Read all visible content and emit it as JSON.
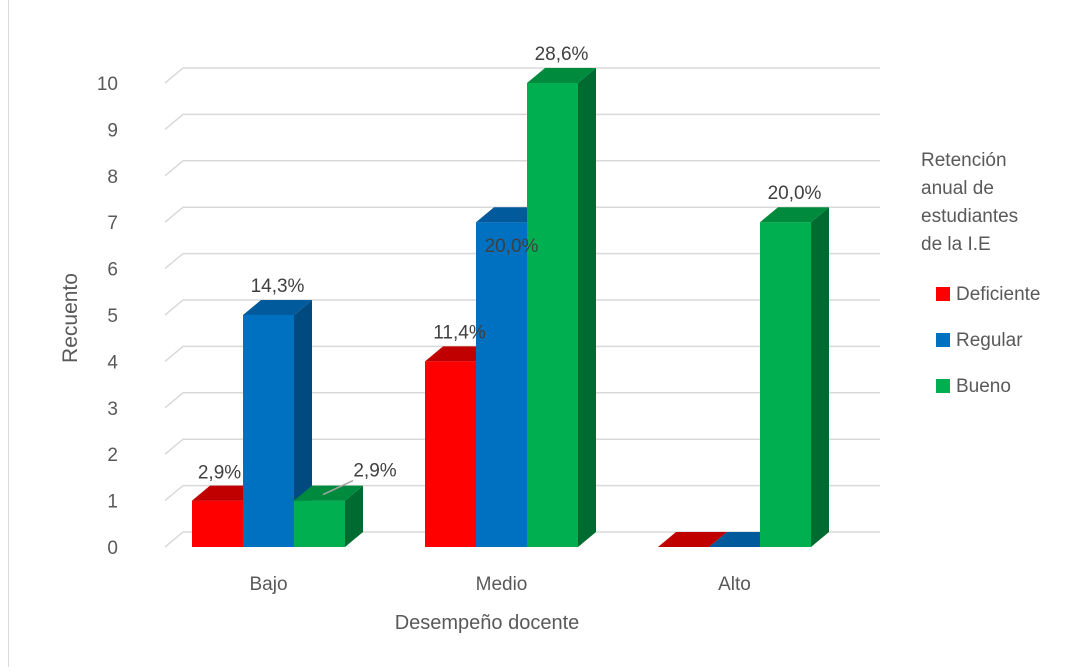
{
  "chart_data": {
    "type": "bar",
    "categories": [
      "Bajo",
      "Medio",
      "Alto"
    ],
    "series": [
      {
        "name": "Deficiente",
        "values": [
          1,
          4,
          0
        ],
        "labels": [
          "2,9%",
          "11,4%",
          ""
        ]
      },
      {
        "name": "Regular",
        "values": [
          5,
          7,
          0
        ],
        "labels": [
          "14,3%",
          "20,0%",
          ""
        ]
      },
      {
        "name": "Bueno",
        "values": [
          1,
          10,
          7
        ],
        "labels": [
          "2,9%",
          "28,6%",
          "20,0%"
        ]
      }
    ],
    "xlabel": "Desempeño docente",
    "ylabel": "Recuento",
    "ylim": [
      0,
      10
    ],
    "yticks": [
      "0",
      "1",
      "2",
      "3",
      "4",
      "5",
      "6",
      "7",
      "8",
      "9",
      "10"
    ],
    "grid": true,
    "legend_title": "Retención anual de estudiantes de la I.E",
    "legend_position": "right",
    "colors": {
      "Deficiente": {
        "front": "#ff0000",
        "top": "#c00000",
        "side": "#a50000"
      },
      "Regular": {
        "front": "#0070c0",
        "top": "#005a9c",
        "side": "#004a80"
      },
      "Bueno": {
        "front": "#00b050",
        "top": "#008a3e",
        "side": "#006b30"
      }
    }
  }
}
